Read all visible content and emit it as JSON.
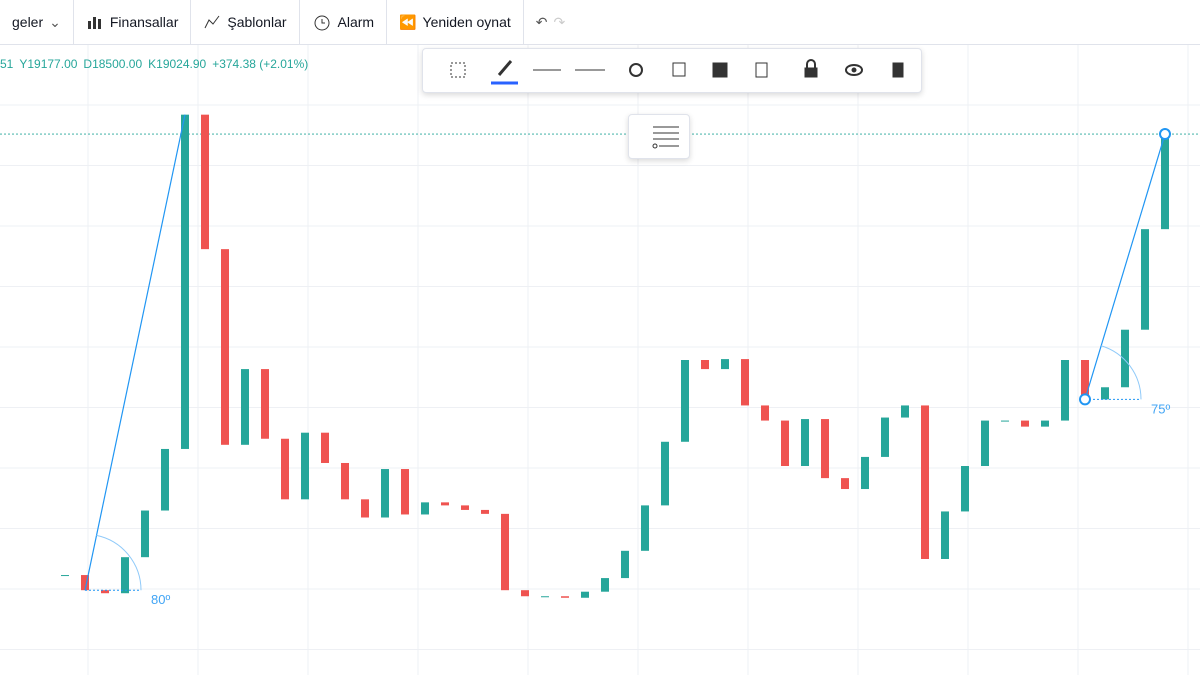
{
  "toolbar": {
    "items": [
      "geler",
      "Finansallar",
      "Şablonlar",
      "Alarm",
      "Yeniden oynat"
    ]
  },
  "legend": {
    "items": [
      "51",
      "Y19177.00",
      "D18500.00",
      "K19024.90",
      "+374.38 (+2.01%)"
    ]
  },
  "chart_data": {
    "type": "candlestick",
    "categories": [
      null,
      null,
      null,
      null,
      null,
      null,
      null,
      null,
      null,
      null,
      null,
      null,
      null,
      null,
      null,
      null,
      null,
      null,
      null,
      null,
      null,
      null,
      null,
      null,
      null,
      null,
      null,
      null,
      null,
      null,
      null,
      null,
      null,
      null,
      null,
      null,
      null,
      null,
      null,
      null,
      null,
      null,
      null,
      null,
      null,
      null,
      null,
      null,
      null,
      null,
      null,
      null,
      null,
      null,
      null,
      null
    ],
    "close": [
      4400,
      3900,
      3800,
      4990,
      6530,
      8563,
      19600,
      15160,
      8700,
      11200,
      8900,
      6900,
      9100,
      8100,
      6900,
      6300,
      7900,
      6400,
      6800,
      6700,
      6550,
      6420,
      3900,
      3700,
      3700,
      3650,
      3850,
      4300,
      5200,
      6700,
      8800,
      11500,
      11200,
      11530,
      10000,
      9500,
      8000,
      9550,
      7600,
      7240,
      8300,
      9600,
      10000,
      4930,
      6500,
      8000,
      9500,
      9500,
      9300,
      9500,
      11500,
      10200,
      10600,
      12500,
      15820,
      18960
    ],
    "up_color": "#26a69a",
    "down_color": "#ef5350",
    "ylim": [
      1100,
      21900
    ],
    "annotations": [
      "80º",
      "75º"
    ]
  }
}
